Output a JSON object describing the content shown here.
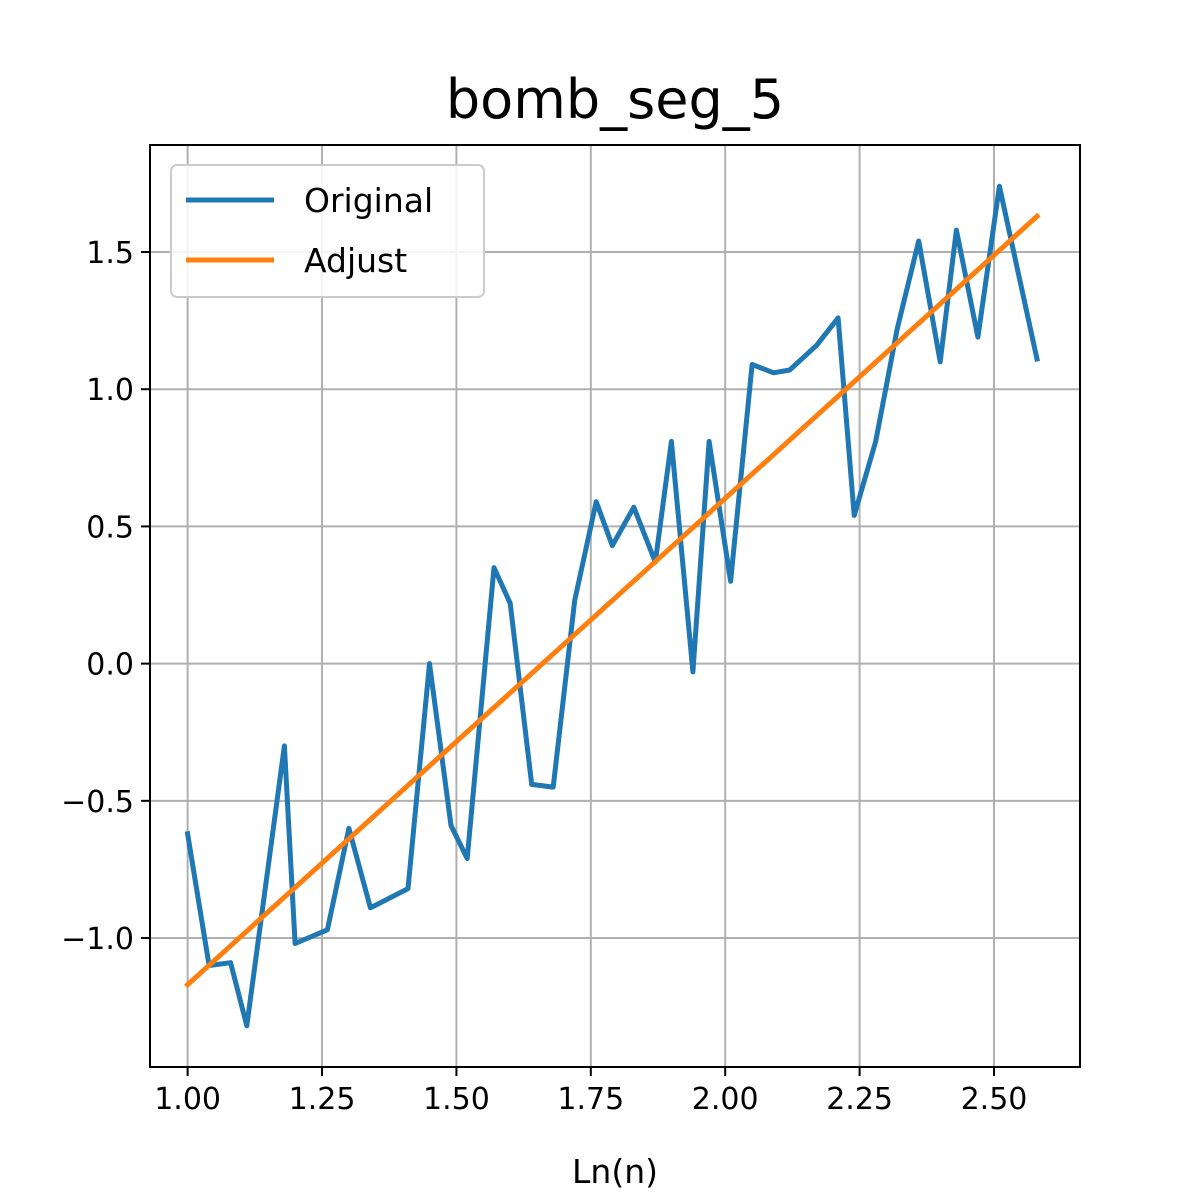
{
  "chart_data": {
    "type": "line",
    "title": "bomb_seg_5",
    "xlabel": "Ln(n)",
    "ylabel": "",
    "xlim": [
      0.93,
      2.66
    ],
    "ylim": [
      -1.47,
      1.89
    ],
    "xticks": [
      1.0,
      1.25,
      1.5,
      1.75,
      2.0,
      2.25,
      2.5
    ],
    "xtick_labels": [
      "1.00",
      "1.25",
      "1.50",
      "1.75",
      "2.00",
      "2.25",
      "2.50"
    ],
    "yticks": [
      -1.0,
      -0.5,
      0.0,
      0.5,
      1.0,
      1.5
    ],
    "ytick_labels": [
      "−1.0",
      "−0.5",
      "0.0",
      "0.5",
      "1.0",
      "1.5"
    ],
    "grid": true,
    "legend": "upper-left",
    "series": [
      {
        "name": "Original",
        "color": "#1f77b4",
        "x": [
          1.0,
          1.04,
          1.08,
          1.11,
          1.18,
          1.2,
          1.26,
          1.3,
          1.34,
          1.38,
          1.41,
          1.45,
          1.49,
          1.52,
          1.57,
          1.6,
          1.64,
          1.68,
          1.72,
          1.76,
          1.79,
          1.83,
          1.87,
          1.9,
          1.94,
          1.97,
          2.01,
          2.05,
          2.09,
          2.12,
          2.17,
          2.21,
          2.24,
          2.28,
          2.32,
          2.36,
          2.4,
          2.43,
          2.47,
          2.51,
          2.54,
          2.58
        ],
        "y": [
          -0.62,
          -1.1,
          -1.09,
          -1.32,
          -0.3,
          -1.02,
          -0.97,
          -0.6,
          -0.89,
          -0.85,
          -0.82,
          0.0,
          -0.59,
          -0.71,
          0.35,
          0.22,
          -0.44,
          -0.45,
          0.23,
          0.59,
          0.43,
          0.57,
          0.37,
          0.81,
          -0.03,
          0.81,
          0.3,
          1.09,
          1.06,
          1.07,
          1.16,
          1.26,
          0.54,
          0.81,
          1.22,
          1.54,
          1.1,
          1.58,
          1.19,
          1.74,
          1.47,
          1.11
        ]
      },
      {
        "name": "Adjust",
        "color": "#ff7f0e",
        "x": [
          1.0,
          2.58
        ],
        "y": [
          -1.17,
          1.63
        ]
      }
    ]
  }
}
